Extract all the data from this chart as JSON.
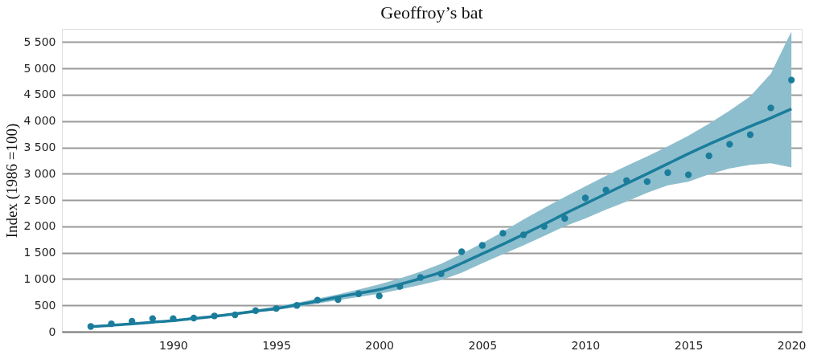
{
  "chart_data": {
    "type": "scatter",
    "title": "Geoffroy’s bat",
    "ylabel": "Index (1986 =100)",
    "x": [
      1986,
      1987,
      1988,
      1989,
      1990,
      1991,
      1992,
      1993,
      1994,
      1995,
      1996,
      1997,
      1998,
      1999,
      2000,
      2001,
      2002,
      2003,
      2004,
      2005,
      2006,
      2007,
      2008,
      2009,
      2010,
      2011,
      2012,
      2013,
      2014,
      2015,
      2016,
      2017,
      2018,
      2019,
      2020
    ],
    "series": [
      {
        "type": "line",
        "marker": "none",
        "color": "#1b7d9c",
        "values": [
          100,
          120,
          150,
          180,
          210,
          250,
          290,
          340,
          390,
          440,
          510,
          580,
          660,
          730,
          800,
          900,
          1010,
          1130,
          1300,
          1480,
          1660,
          1850,
          2040,
          2240,
          2430,
          2620,
          2810,
          3000,
          3190,
          3380,
          3560,
          3730,
          3900,
          4060,
          4230
        ],
        "upper": [
          110,
          130,
          165,
          195,
          225,
          265,
          310,
          360,
          420,
          480,
          550,
          630,
          710,
          800,
          900,
          1010,
          1140,
          1290,
          1480,
          1680,
          1900,
          2130,
          2350,
          2560,
          2760,
          2960,
          3150,
          3330,
          3520,
          3720,
          3950,
          4200,
          4470,
          4900,
          5700
        ],
        "lower": [
          90,
          110,
          135,
          165,
          195,
          235,
          275,
          320,
          365,
          410,
          470,
          535,
          600,
          660,
          720,
          800,
          890,
          980,
          1120,
          1300,
          1470,
          1640,
          1820,
          2000,
          2150,
          2320,
          2470,
          2640,
          2780,
          2850,
          2990,
          3100,
          3170,
          3200,
          3120
        ]
      },
      {
        "color": "#1b7d9c",
        "values": [
          100,
          150,
          200,
          250,
          250,
          260,
          300,
          320,
          400,
          440,
          500,
          600,
          610,
          720,
          680,
          860,
          1030,
          1100,
          1520,
          1640,
          1870,
          1840,
          2000,
          2150,
          2540,
          2690,
          2870,
          2850,
          3020,
          2980,
          3340,
          3560,
          3740,
          4250,
          4780
        ]
      }
    ],
    "xlim": [
      1984.6,
      2020.5
    ],
    "xticks": [
      1990,
      1995,
      2000,
      2005,
      2010,
      2015,
      2020
    ],
    "ylim": [
      0,
      5750
    ],
    "yticks": [
      0,
      500,
      {
        "value": 1000,
        "label": "1 000"
      },
      {
        "value": 1500,
        "label": "1 500"
      },
      {
        "value": 2000,
        "label": "2 000"
      },
      {
        "value": 2500,
        "label": "2 500"
      },
      {
        "value": 3000,
        "label": "3 000"
      },
      {
        "value": 3500,
        "label": "3 500"
      },
      {
        "value": 4000,
        "label": "4 000"
      },
      {
        "value": 4500,
        "label": "4 500"
      },
      {
        "value": 5000,
        "label": "5 000"
      },
      {
        "value": 5500,
        "label": "5 500"
      }
    ],
    "grid": "y",
    "marker": "circle",
    "line_style": "solid"
  }
}
